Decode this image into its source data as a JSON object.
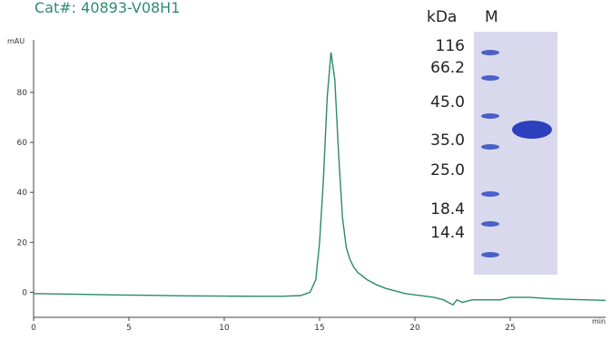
{
  "chart_data": {
    "type": "line",
    "title": "Cat#: 40893-V08H1",
    "y_label": "mAU",
    "x_label": "min",
    "xlim": [
      0,
      30
    ],
    "xticks": [
      0,
      5,
      10,
      15,
      20,
      25
    ],
    "ylim": [
      -10,
      101
    ],
    "yticks": [
      0,
      20,
      40,
      60,
      80
    ],
    "color": "#2a8a6a",
    "x": [
      0,
      2,
      4,
      6,
      8,
      10,
      12,
      13,
      14,
      14.5,
      14.8,
      15.0,
      15.2,
      15.4,
      15.6,
      15.8,
      16.0,
      16.2,
      16.4,
      16.6,
      16.8,
      17,
      17.5,
      18,
      18.5,
      19,
      19.5,
      20,
      20.5,
      21,
      21.5,
      22,
      22.2,
      22.5,
      23,
      23.5,
      24,
      24.5,
      25,
      26,
      27,
      28,
      29,
      30
    ],
    "values": [
      -0.5,
      -0.7,
      -1,
      -1.2,
      -1.4,
      -1.5,
      -1.6,
      -1.6,
      -1.3,
      0,
      5,
      20,
      45,
      78,
      96,
      85,
      55,
      30,
      18,
      13,
      10,
      8,
      5,
      3,
      1.5,
      0.5,
      -0.5,
      -1,
      -1.5,
      -2,
      -3,
      -5,
      -3,
      -4,
      -3,
      -3,
      -3,
      -3,
      -2,
      -2,
      -2.5,
      -2.8,
      -3,
      -3.2
    ]
  },
  "gel": {
    "unit_label": "kDa",
    "lane_label": "M",
    "markers": [
      "116",
      "66.2",
      "45.0",
      "35.0",
      "25.0",
      "18.4",
      "14.4"
    ]
  }
}
